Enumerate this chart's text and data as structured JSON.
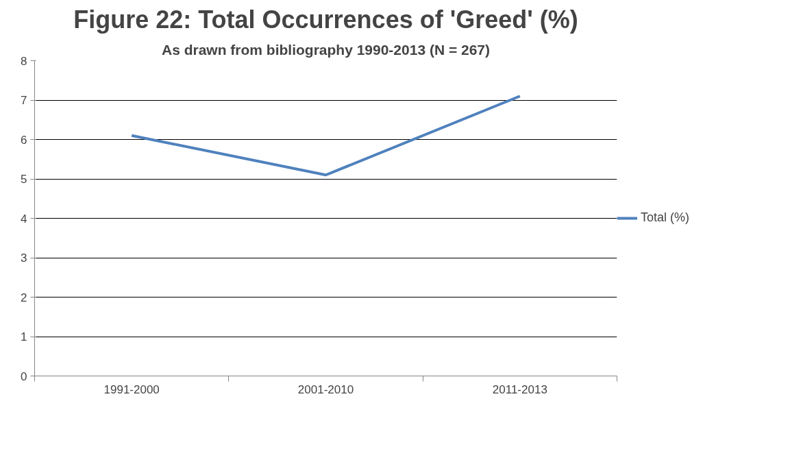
{
  "chart_data": {
    "type": "line",
    "title": "Figure 22: Total Occurrences of 'Greed' (%)",
    "subtitle": "As drawn from bibliography 1990-2013 (N = 267)",
    "categories": [
      "1991-2000",
      "2001-2010",
      "2011-2013"
    ],
    "series": [
      {
        "name": "Total (%)",
        "color": "#4f81bd",
        "values": [
          6.1,
          5.1,
          7.1
        ]
      }
    ],
    "ylim": [
      0,
      8
    ],
    "yticks": [
      0,
      1,
      2,
      3,
      4,
      5,
      6,
      7,
      8
    ],
    "grid": "y",
    "legend": "right",
    "marker": "none",
    "line_style": "solid"
  }
}
